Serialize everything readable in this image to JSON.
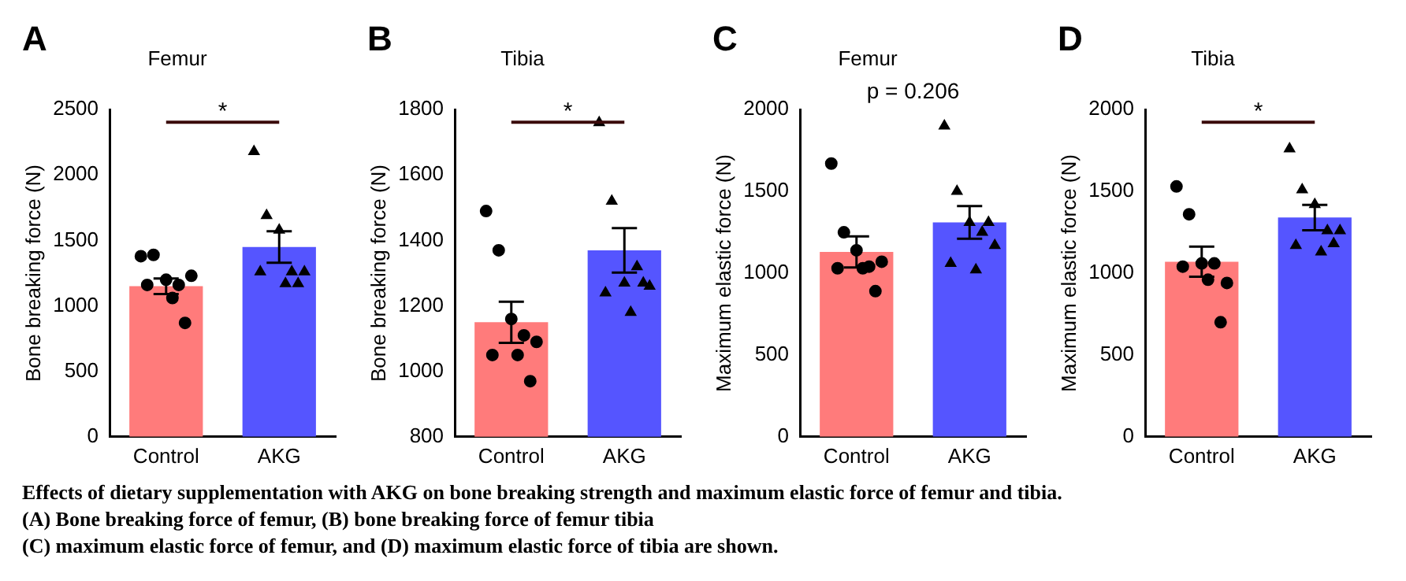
{
  "chart_data": [
    {
      "type": "bar",
      "title": "Femur",
      "ylabel": "Bone breaking force (N)",
      "categories": [
        "Control",
        "AKG"
      ],
      "ylim": [
        0,
        2500
      ],
      "yticks": [
        0,
        500,
        1000,
        1500,
        2000,
        2500
      ],
      "annotations": [
        "A",
        {
          "text": "*"
        }
      ],
      "series": [
        {
          "type": "bar",
          "colors": [
            "#ff7b7b",
            "#5555ff"
          ],
          "values": [
            1150,
            1450
          ],
          "errors": [
            60,
            120
          ]
        },
        {
          "type": "scatter",
          "marker": "circle",
          "color": "#000000",
          "x": [
            "Control",
            "Control",
            "Control",
            "Control",
            "Control",
            "Control",
            "Control",
            "Control"
          ],
          "values": [
            1380,
            1390,
            1200,
            1160,
            1230,
            1160,
            1060,
            870
          ]
        },
        {
          "type": "scatter",
          "marker": "triangle",
          "color": "#000000",
          "x": [
            "AKG",
            "AKG",
            "AKG",
            "AKG",
            "AKG",
            "AKG",
            "AKG",
            "AKG"
          ],
          "values": [
            2180,
            1690,
            1580,
            1260,
            1260,
            1260,
            1170,
            1170
          ]
        }
      ]
    },
    {
      "type": "bar",
      "title": "Tibia",
      "ylabel": "Bone breaking force (N)",
      "categories": [
        "Control",
        "AKG"
      ],
      "ylim": [
        800,
        1800
      ],
      "yticks": [
        800,
        1000,
        1200,
        1400,
        1600,
        1800
      ],
      "annotations": [
        "B",
        {
          "text": "*"
        }
      ],
      "series": [
        {
          "type": "bar",
          "colors": [
            "#ff7b7b",
            "#5555ff"
          ],
          "values": [
            1150,
            1370
          ],
          "errors": [
            63,
            68
          ]
        },
        {
          "type": "scatter",
          "marker": "circle",
          "color": "#000000",
          "x": [
            "Control",
            "Control",
            "Control",
            "Control",
            "Control",
            "Control",
            "Control",
            "Control"
          ],
          "values": [
            1490,
            1370,
            1160,
            1110,
            1090,
            1050,
            1050,
            970
          ]
        },
        {
          "type": "scatter",
          "marker": "triangle",
          "color": "#000000",
          "x": [
            "AKG",
            "AKG",
            "AKG",
            "AKG",
            "AKG",
            "AKG",
            "AKG",
            "AKG"
          ],
          "values": [
            1760,
            1520,
            1270,
            1320,
            1260,
            1240,
            1180,
            1270
          ]
        }
      ]
    },
    {
      "type": "bar",
      "title": "Femur",
      "ylabel": "Maximum elastic force (N)",
      "categories": [
        "Control",
        "AKG"
      ],
      "ylim": [
        0,
        2000
      ],
      "yticks": [
        0,
        500,
        1000,
        1500,
        2000
      ],
      "annotations": [
        "C",
        "p = 0.206"
      ],
      "series": [
        {
          "type": "bar",
          "colors": [
            "#ff7b7b",
            "#5555ff"
          ],
          "values": [
            1130,
            1310
          ],
          "errors": [
            95,
            100
          ]
        },
        {
          "type": "scatter",
          "marker": "circle",
          "color": "#000000",
          "x": [
            "Control",
            "Control",
            "Control",
            "Control",
            "Control",
            "Control",
            "Control",
            "Control"
          ],
          "values": [
            1670,
            1250,
            1140,
            1040,
            1070,
            1030,
            1030,
            890
          ]
        },
        {
          "type": "scatter",
          "marker": "triangle",
          "color": "#000000",
          "x": [
            "AKG",
            "AKG",
            "AKG",
            "AKG",
            "AKG",
            "AKG",
            "AKG",
            "AKG"
          ],
          "values": [
            1900,
            1500,
            1310,
            1250,
            1170,
            1060,
            1020,
            1310
          ]
        }
      ]
    },
    {
      "type": "bar",
      "title": "Tibia",
      "ylabel": "Maximum elastic force (N)",
      "categories": [
        "Control",
        "AKG"
      ],
      "ylim": [
        0,
        2000
      ],
      "yticks": [
        0,
        500,
        1000,
        1500,
        2000
      ],
      "annotations": [
        "D",
        {
          "text": "*"
        }
      ],
      "series": [
        {
          "type": "bar",
          "colors": [
            "#ff7b7b",
            "#5555ff"
          ],
          "values": [
            1070,
            1340
          ],
          "errors": [
            92,
            78
          ]
        },
        {
          "type": "scatter",
          "marker": "circle",
          "color": "#000000",
          "x": [
            "Control",
            "Control",
            "Control",
            "Control",
            "Control",
            "Control",
            "Control",
            "Control"
          ],
          "values": [
            1530,
            1360,
            1060,
            1060,
            940,
            1040,
            960,
            700
          ]
        },
        {
          "type": "scatter",
          "marker": "triangle",
          "color": "#000000",
          "x": [
            "AKG",
            "AKG",
            "AKG",
            "AKG",
            "AKG",
            "AKG",
            "AKG",
            "AKG"
          ],
          "values": [
            1760,
            1510,
            1420,
            1260,
            1260,
            1170,
            1130,
            1180
          ]
        }
      ]
    },
    {
      "type": "other",
      "annotations": [
        "Effects of dietary supplementation with AKG on bone breaking strength and maximum elastic force of femur and tibia.",
        "(A) Bone breaking force of femur, (B) bone breaking force of femur tibia",
        "(C) maximum elastic force of femur, and (D) maximum elastic force of tibia are shown."
      ]
    }
  ]
}
